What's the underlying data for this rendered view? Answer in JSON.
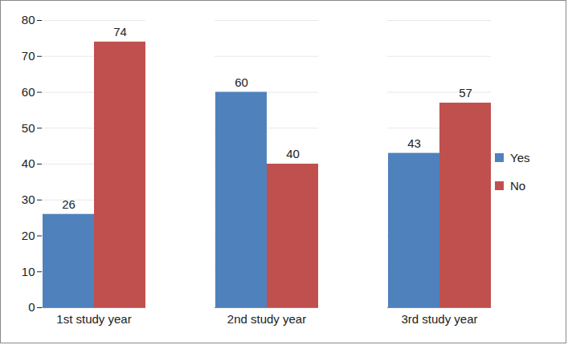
{
  "chart_data": {
    "type": "bar",
    "categories": [
      "1st study year",
      "2nd study year",
      "3rd study year"
    ],
    "series": [
      {
        "name": "Yes",
        "color": "#4f81bd",
        "values": [
          26,
          60,
          43
        ]
      },
      {
        "name": "No",
        "color": "#c0504d",
        "values": [
          74,
          40,
          57
        ]
      }
    ],
    "ylim": [
      0,
      80
    ],
    "yticks": [
      0,
      10,
      20,
      30,
      40,
      50,
      60,
      70,
      80
    ],
    "grid": true,
    "data_labels": true,
    "legend": "right"
  }
}
